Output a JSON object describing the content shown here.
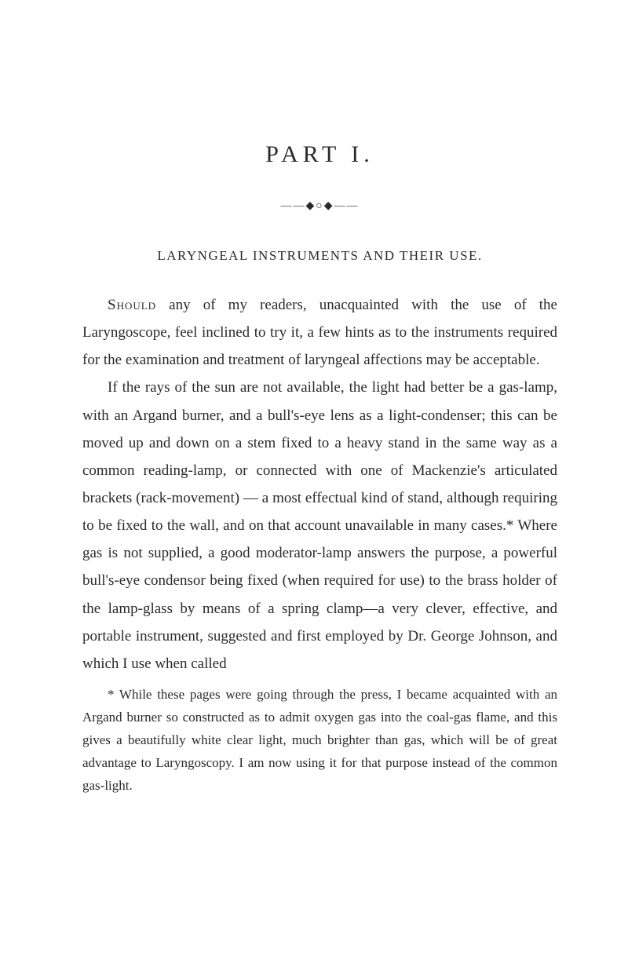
{
  "title": "PART I.",
  "divider": "——◆○◆——",
  "heading": "LARYNGEAL INSTRUMENTS AND THEIR USE.",
  "paragraphs": {
    "p1_lead": "Should",
    "p1_rest": " any of my readers, unacquainted with the use of the Laryngoscope, feel inclined to try it, a few hints as to the instruments required for the examination and treatment of laryngeal affections may be acceptable.",
    "p2": "If the rays of the sun are not available, the light had better be a gas-lamp, with an Argand burner, and a bull's-eye lens as a light-condenser; this can be moved up and down on a stem fixed to a heavy stand in the same way as a common reading-lamp, or connected with one of Mackenzie's articulated brackets (rack-movement) — a most effectual kind of stand, although requiring to be fixed to the wall, and on that account unavailable in many cases.* Where gas is not supplied, a good moderator-lamp answers the purpose, a powerful bull's-eye condensor being fixed (when required for use) to the brass holder of the lamp-glass by means of a spring clamp—a very clever, effective, and portable instrument, suggested and first employed by Dr. George Johnson, and which I use when called"
  },
  "footnote": "* While these pages were going through the press, I became acquainted with an Argand burner so constructed as to admit oxygen gas into the coal-gas flame, and this gives a beautifully white clear light, much brighter than gas, which will be of great advantage to Laryngoscopy. I am now using it for that purpose instead of the common gas-light."
}
